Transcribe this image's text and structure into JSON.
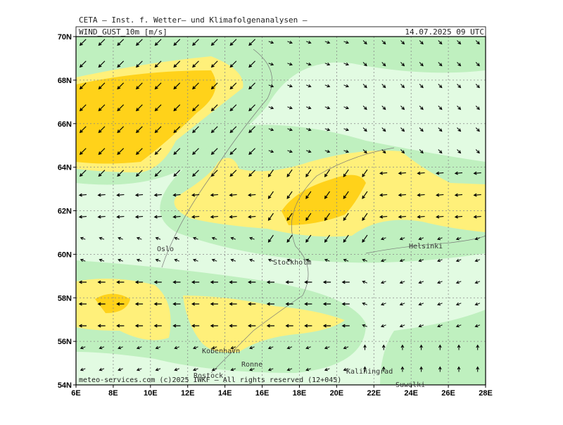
{
  "header": {
    "title": "CETA – Inst. f. Wetter– und Klimafolgenanalysen –",
    "variable": "WIND_GUST_10m [m/s]",
    "valid_time": "14.07.2025 09 UTC"
  },
  "axes": {
    "lon_labels": [
      "6E",
      "8E",
      "10E",
      "12E",
      "14E",
      "16E",
      "18E",
      "20E",
      "22E",
      "24E",
      "26E",
      "28E"
    ],
    "lat_labels": [
      "70N",
      "68N",
      "66N",
      "64N",
      "62N",
      "60N",
      "58N",
      "56N",
      "54N"
    ]
  },
  "places": [
    "Oslo",
    "Stockholm",
    "Helsinki",
    "Kobenhavn",
    "Ronne",
    "Rostock",
    "Kaliningrad",
    "Suwalki"
  ],
  "footer": "meteo-services.com (c)2025 IWKF – All rights reserved (12+045)"
}
